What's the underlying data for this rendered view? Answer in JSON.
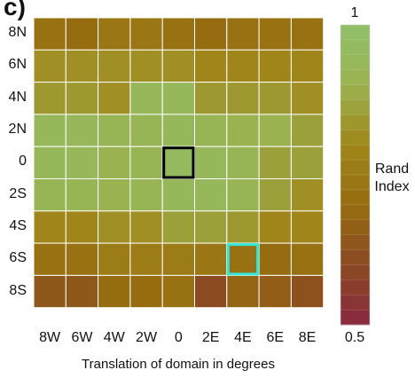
{
  "panel_label": "c)",
  "chart_data": {
    "type": "heatmap",
    "title": "",
    "xlabel": "Translation of domain in degrees",
    "ylabel": "",
    "x_categories": [
      "8W",
      "6W",
      "4W",
      "2W",
      "0",
      "2E",
      "4E",
      "6E",
      "8E"
    ],
    "y_categories": [
      "8N",
      "6N",
      "4N",
      "2N",
      "0",
      "2S",
      "4S",
      "6S",
      "8S"
    ],
    "values": [
      [
        0.72,
        0.7,
        0.74,
        0.74,
        0.72,
        0.7,
        0.72,
        0.72,
        0.72
      ],
      [
        0.82,
        0.82,
        0.82,
        0.82,
        0.82,
        0.8,
        0.8,
        0.8,
        0.8
      ],
      [
        0.84,
        0.84,
        0.82,
        0.94,
        0.94,
        0.84,
        0.84,
        0.84,
        0.82
      ],
      [
        0.94,
        0.94,
        0.92,
        0.92,
        0.94,
        0.92,
        0.9,
        0.9,
        0.86
      ],
      [
        0.94,
        0.94,
        0.9,
        0.92,
        0.96,
        0.94,
        0.92,
        0.86,
        0.86
      ],
      [
        0.92,
        0.92,
        0.9,
        0.92,
        0.94,
        0.94,
        0.92,
        0.86,
        0.82
      ],
      [
        0.8,
        0.8,
        0.82,
        0.82,
        0.86,
        0.86,
        0.84,
        0.8,
        0.8
      ],
      [
        0.72,
        0.72,
        0.76,
        0.76,
        0.76,
        0.74,
        0.72,
        0.7,
        0.72
      ],
      [
        0.64,
        0.64,
        0.7,
        0.7,
        0.72,
        0.6,
        0.68,
        0.66,
        0.62
      ]
    ],
    "highlights": [
      {
        "x": "0",
        "y": "0",
        "color": "#000000"
      },
      {
        "x": "4E",
        "y": "6S",
        "color": "#33e8d8"
      }
    ],
    "colorbar": {
      "label_line1": "Rand",
      "label_line2": "Index",
      "min": 0.5,
      "max": 1,
      "min_label": "0.5",
      "max_label": "1",
      "stops": [
        "#8a2840",
        "#8b4a22",
        "#966c10",
        "#a0861a",
        "#9ab250",
        "#90c06a"
      ]
    }
  }
}
